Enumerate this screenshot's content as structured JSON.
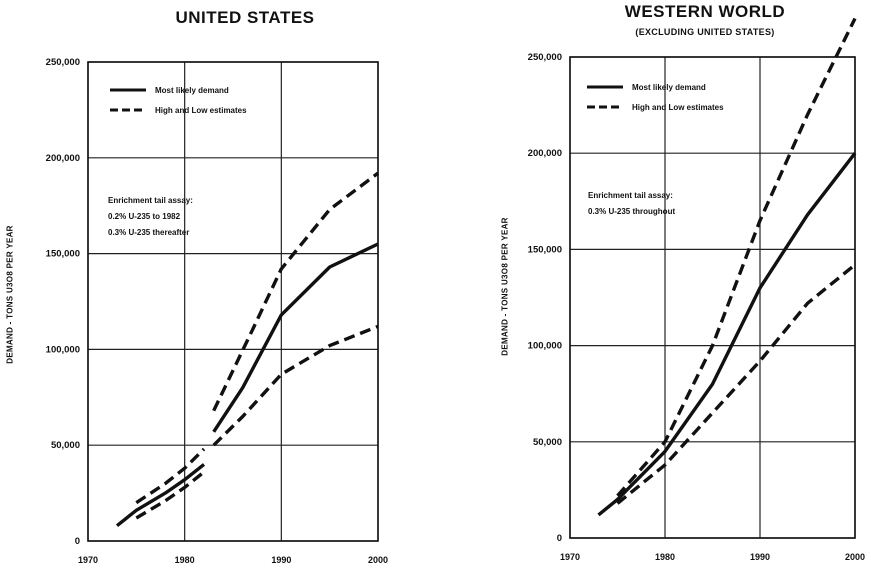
{
  "chart_data": [
    {
      "type": "line",
      "title": "UNITED STATES",
      "subtitle": "",
      "ylabel": "DEMAND - TONS U3O8 PER YEAR",
      "xlabel": "",
      "xlim": [
        1970,
        2000
      ],
      "ylim": [
        0,
        250000
      ],
      "x_ticks": [
        "1970",
        "1980",
        "1990",
        "2000"
      ],
      "y_ticks": [
        "0",
        "50,000",
        "100,000",
        "150,000",
        "200,000",
        "250,000"
      ],
      "grid": true,
      "legend": {
        "placement": "top-left",
        "entries": [
          {
            "label": "Most likely demand",
            "style": "solid"
          },
          {
            "label": "High and Low estimates",
            "style": "dashed"
          }
        ]
      },
      "annotation_lines": [
        "Enrichment tail assay:",
        "0.2% U-235 to 1982",
        "0.3% U-235 thereafter"
      ],
      "series": [
        {
          "name": "Most likely demand",
          "style": "solid",
          "segments": [
            {
              "x": [
                1973,
                1975,
                1978,
                1980,
                1982
              ],
              "y": [
                8000,
                16000,
                25000,
                32000,
                40000
              ]
            },
            {
              "x": [
                1983,
                1986,
                1990,
                1995,
                2000
              ],
              "y": [
                57000,
                80000,
                118000,
                143000,
                155000
              ]
            }
          ]
        },
        {
          "name": "High estimate",
          "style": "dashed",
          "segments": [
            {
              "x": [
                1975,
                1978,
                1980,
                1982
              ],
              "y": [
                20000,
                30000,
                38000,
                48000
              ]
            },
            {
              "x": [
                1983,
                1987,
                1990,
                1995,
                2000
              ],
              "y": [
                68000,
                110000,
                142000,
                173000,
                192000
              ]
            }
          ]
        },
        {
          "name": "Low estimate",
          "style": "dashed",
          "segments": [
            {
              "x": [
                1975,
                1978,
                1980,
                1982
              ],
              "y": [
                12000,
                21000,
                28000,
                36000
              ]
            },
            {
              "x": [
                1983,
                1986,
                1990,
                1995,
                2000
              ],
              "y": [
                50000,
                65000,
                87000,
                102000,
                112000
              ]
            }
          ]
        }
      ]
    },
    {
      "type": "line",
      "title": "WESTERN WORLD",
      "subtitle": "(EXCLUDING UNITED STATES)",
      "ylabel": "DEMAND - TONS U3O8 PER YEAR",
      "xlabel": "",
      "xlim": [
        1970,
        2000
      ],
      "ylim": [
        0,
        250000
      ],
      "x_ticks": [
        "1970",
        "1980",
        "1990",
        "2000"
      ],
      "y_ticks": [
        "0",
        "50,000",
        "100,000",
        "150,000",
        "200,000",
        "250,000"
      ],
      "grid": true,
      "legend": {
        "placement": "top-left",
        "entries": [
          {
            "label": "Most likely demand",
            "style": "solid"
          },
          {
            "label": "High and Low estimates",
            "style": "dashed"
          }
        ]
      },
      "annotation_lines": [
        "Enrichment tail assay:",
        "0.3% U-235 throughout"
      ],
      "series": [
        {
          "name": "Most likely demand",
          "style": "solid",
          "segments": [
            {
              "x": [
                1973,
                1975,
                1980,
                1985,
                1990,
                1995,
                2000
              ],
              "y": [
                12000,
                20000,
                45000,
                80000,
                130000,
                168000,
                200000
              ]
            }
          ]
        },
        {
          "name": "High estimate",
          "style": "dashed",
          "segments": [
            {
              "x": [
                1975,
                1980,
                1985,
                1990,
                1995,
                2000
              ],
              "y": [
                22000,
                50000,
                100000,
                165000,
                220000,
                270000
              ]
            }
          ]
        },
        {
          "name": "Low estimate",
          "style": "dashed",
          "segments": [
            {
              "x": [
                1975,
                1980,
                1985,
                1990,
                1995,
                2000
              ],
              "y": [
                18000,
                38000,
                65000,
                92000,
                122000,
                142000
              ]
            }
          ]
        }
      ]
    }
  ]
}
